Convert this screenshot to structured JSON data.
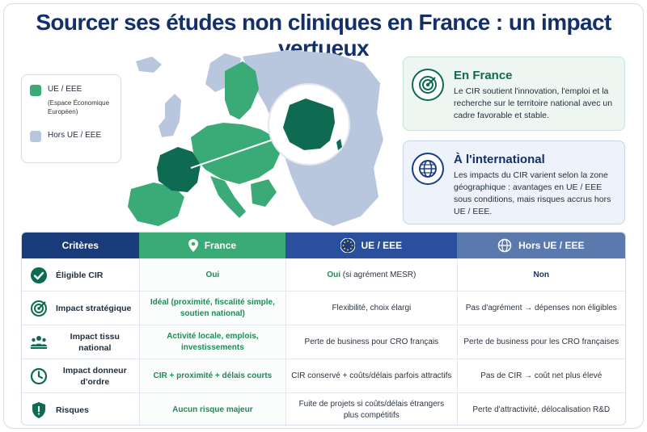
{
  "title": "Sourcer ses études non cliniques en France : un impact vertueux",
  "colors": {
    "eu": "#3aaa77",
    "non_eu": "#b9c7de",
    "france": "#0e6b52",
    "navy": "#14306b"
  },
  "legend": {
    "eu_label": "UE / EEE",
    "eu_note_1": "(Espace Économique",
    "eu_note_2": "Européen)",
    "non_eu_label": "Hors UE / EEE"
  },
  "france_box": {
    "icon": "target-icon",
    "title": "En France",
    "text": "Le CIR soutient l'innovation, l'emploi et la recherche sur le territoire national avec un cadre favorable et stable."
  },
  "intl_box": {
    "icon": "globe-icon",
    "title": "À l'international",
    "text": "Les impacts du CIR varient selon la zone géographique : avantages en UE / EEE sous conditions, mais risques accrus hors UE / EEE."
  },
  "table": {
    "headers": {
      "criteria": "Critères",
      "france": "France",
      "eu": "UE / EEE",
      "non_eu": "Hors UE / EEE"
    },
    "rows": [
      {
        "icon": "check-circle-icon",
        "criteria": "Éligible CIR",
        "france": "Oui",
        "eu_strong": "Oui",
        "eu": "(si agrément MESR)",
        "non_eu": "Non"
      },
      {
        "icon": "target-icon",
        "criteria": "Impact stratégique",
        "france": "Idéal (proximité, fiscalité simple, soutien national)",
        "eu": "Flexibilité, choix élargi",
        "non_eu": "Pas d'agrément → dépenses non éligibles"
      },
      {
        "icon": "people-icon",
        "criteria": "Impact tissu national",
        "france": "Activité locale, emplois, investissements",
        "eu": "Perte de business pour CRO français",
        "non_eu": "Perte de business pour les CRO françaises"
      },
      {
        "icon": "clock-icon",
        "criteria": "Impact donneur d'ordre",
        "france": "CIR + proximité + délais courts",
        "eu": "CIR conservé + coûts/délais parfois attractifs",
        "non_eu": "Pas de CIR → coût net plus élevé"
      },
      {
        "icon": "shield-alert-icon",
        "criteria": "Risques",
        "france": "Aucun risque majeur",
        "eu": "Fuite de projets si coûts/délais étrangers plus compétitifs",
        "non_eu": "Perte d'attractivité, délocalisation R&D"
      }
    ]
  }
}
